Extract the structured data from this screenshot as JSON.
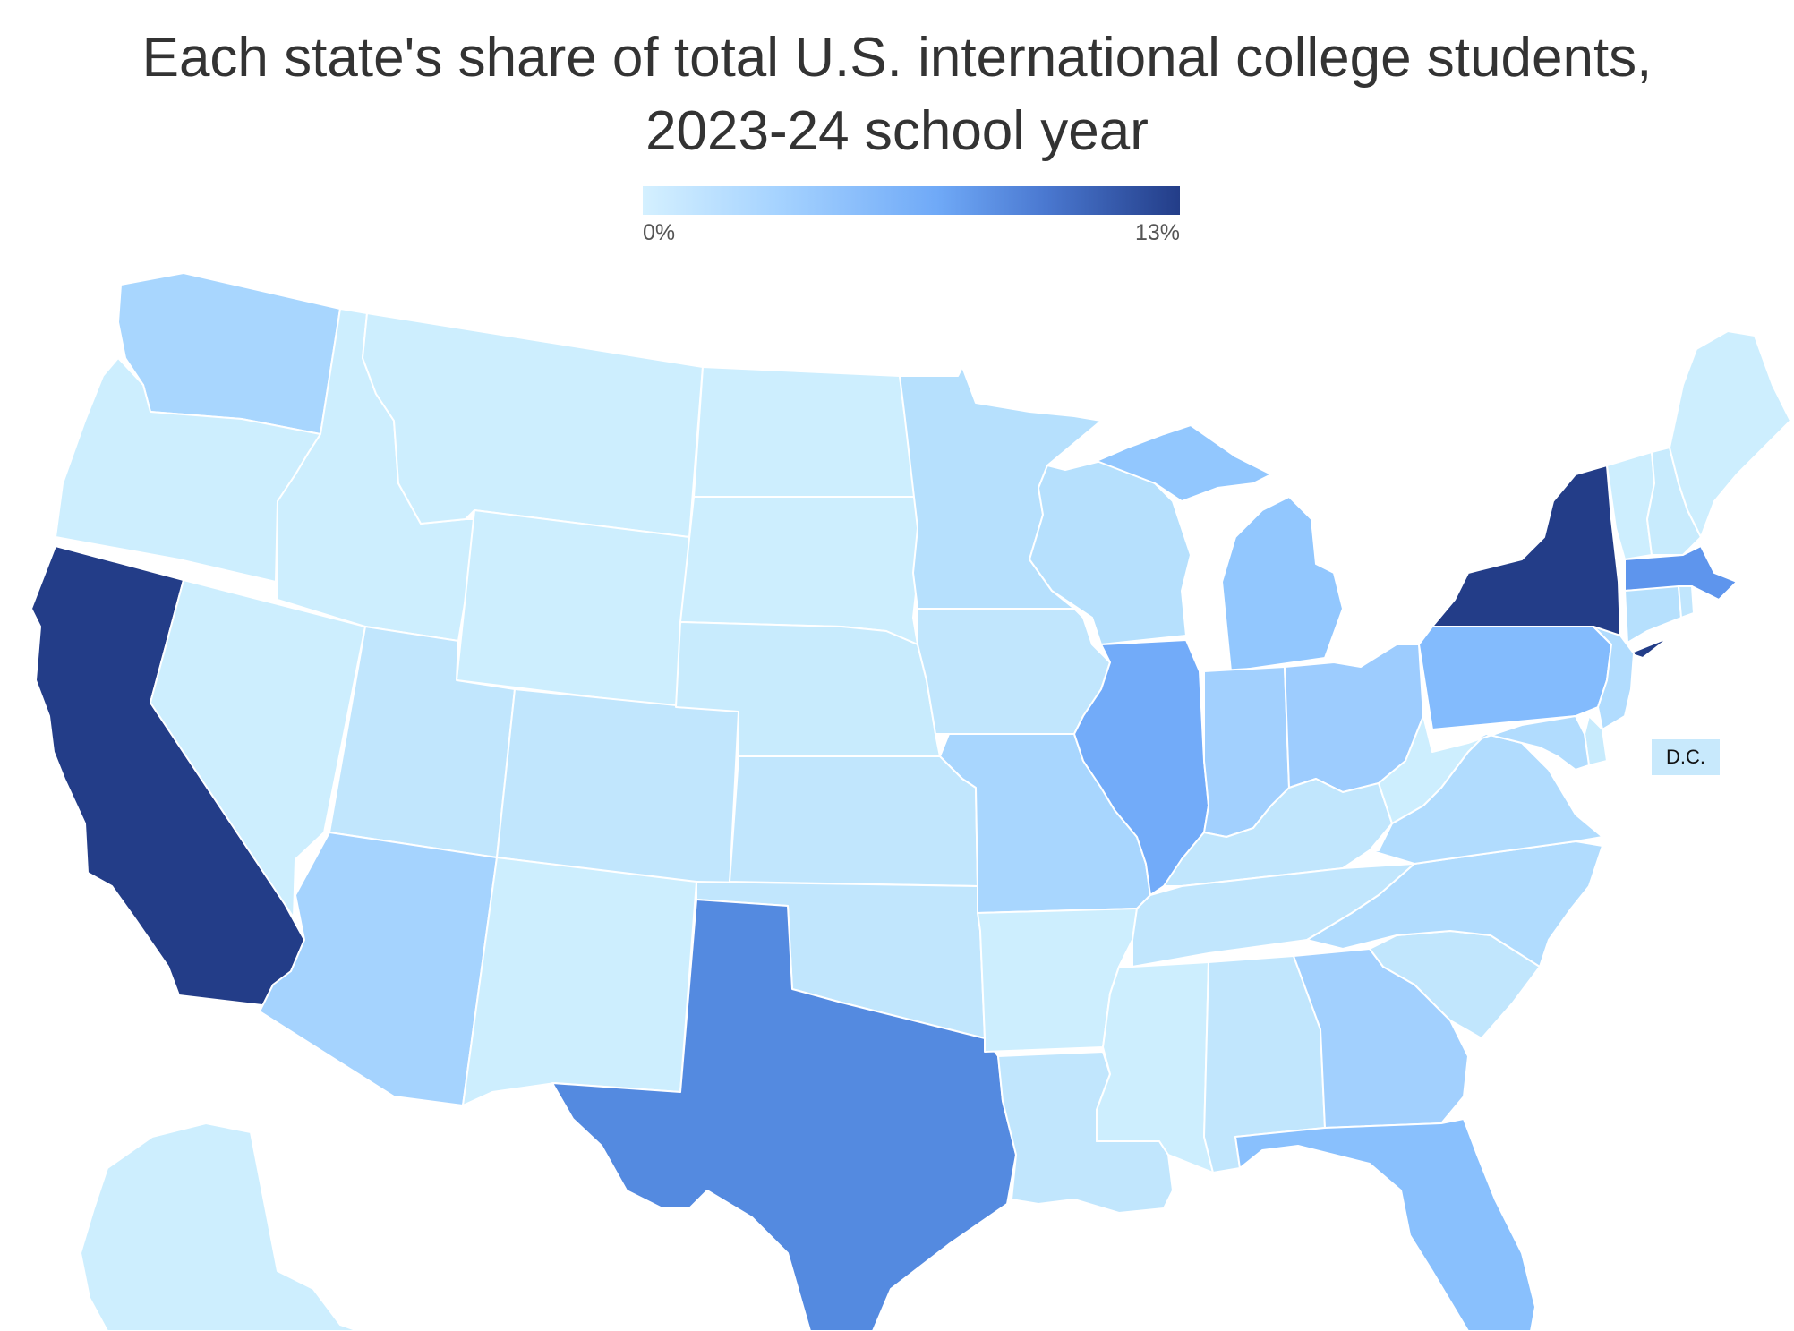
{
  "title": {
    "line1": "Each state's share of total U.S. international college students,",
    "line2": "2023-24 school year"
  },
  "legend": {
    "min_label": "0%",
    "max_label": "13%",
    "colors": [
      "#d4f0ff",
      "#a6d3ff",
      "#6fa9f7",
      "#4a78d0",
      "#233d88"
    ]
  },
  "dc_label": "D.C.",
  "map_data": {
    "type": "choropleth",
    "region": "United States",
    "states": [
      {
        "id": "WA",
        "color": "#a8d6fe"
      },
      {
        "id": "OR",
        "color": "#cdeefe"
      },
      {
        "id": "CA",
        "color": "#233d88"
      },
      {
        "id": "NV",
        "color": "#cdeefe"
      },
      {
        "id": "ID",
        "color": "#cdeefe"
      },
      {
        "id": "MT",
        "color": "#cdeefe"
      },
      {
        "id": "WY",
        "color": "#cdeefe"
      },
      {
        "id": "UT",
        "color": "#c1e6fd"
      },
      {
        "id": "CO",
        "color": "#c1e6fd"
      },
      {
        "id": "AZ",
        "color": "#a5d3fe"
      },
      {
        "id": "NM",
        "color": "#cdeefe"
      },
      {
        "id": "ND",
        "color": "#cdeefe"
      },
      {
        "id": "SD",
        "color": "#cdeefe"
      },
      {
        "id": "NE",
        "color": "#c8ebfd"
      },
      {
        "id": "KS",
        "color": "#c1e6fd"
      },
      {
        "id": "OK",
        "color": "#c1e6fd"
      },
      {
        "id": "TX",
        "color": "#548ae0"
      },
      {
        "id": "MN",
        "color": "#b6e0fd"
      },
      {
        "id": "IA",
        "color": "#c1e6fd"
      },
      {
        "id": "MO",
        "color": "#a8d6fe"
      },
      {
        "id": "AR",
        "color": "#cdeefe"
      },
      {
        "id": "LA",
        "color": "#c1e6fd"
      },
      {
        "id": "WI",
        "color": "#b6e0fd"
      },
      {
        "id": "IL",
        "color": "#72abf9"
      },
      {
        "id": "MI",
        "color": "#92c7fe"
      },
      {
        "id": "IN",
        "color": "#a2d0fe"
      },
      {
        "id": "OH",
        "color": "#9dccfe"
      },
      {
        "id": "KY",
        "color": "#c1e6fd"
      },
      {
        "id": "TN",
        "color": "#c1e6fd"
      },
      {
        "id": "MS",
        "color": "#cdeefe"
      },
      {
        "id": "AL",
        "color": "#c1e6fd"
      },
      {
        "id": "GA",
        "color": "#a2d0fe"
      },
      {
        "id": "FL",
        "color": "#89c0fd"
      },
      {
        "id": "SC",
        "color": "#c1e6fd"
      },
      {
        "id": "NC",
        "color": "#b1dcfe"
      },
      {
        "id": "VA",
        "color": "#b1dcfe"
      },
      {
        "id": "WV",
        "color": "#cdeefe"
      },
      {
        "id": "PA",
        "color": "#83bbfd"
      },
      {
        "id": "NY",
        "color": "#233d88"
      },
      {
        "id": "VT",
        "color": "#cdeefe"
      },
      {
        "id": "NH",
        "color": "#c8ebfd"
      },
      {
        "id": "ME",
        "color": "#cdeefe"
      },
      {
        "id": "MA",
        "color": "#5e95ed"
      },
      {
        "id": "CT",
        "color": "#b6e0fd"
      },
      {
        "id": "RI",
        "color": "#c1e6fd"
      },
      {
        "id": "NJ",
        "color": "#b1dcfe"
      },
      {
        "id": "DE",
        "color": "#c8ebfd"
      },
      {
        "id": "MD",
        "color": "#b1dcfe"
      },
      {
        "id": "DC",
        "color": "#c8e9fc"
      },
      {
        "id": "AK",
        "color": "#cdeefe"
      }
    ]
  }
}
